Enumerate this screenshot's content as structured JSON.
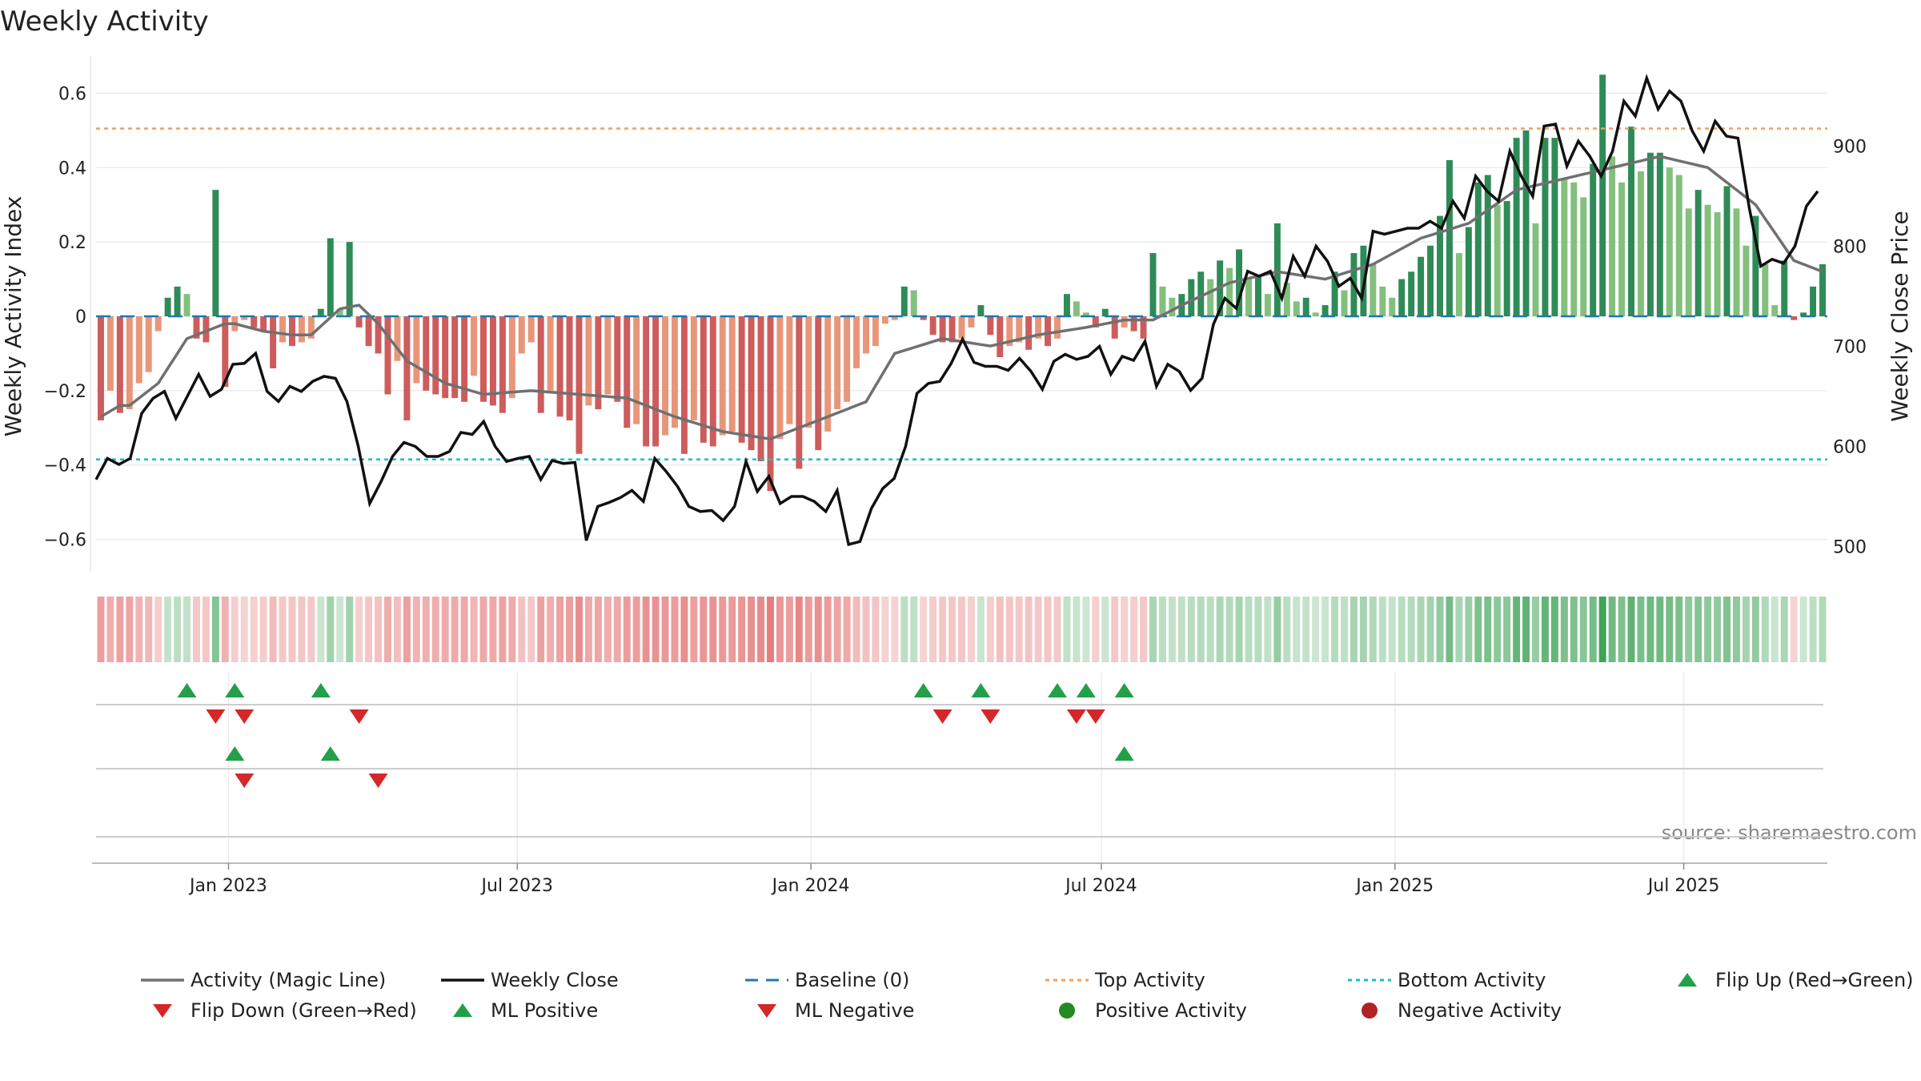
{
  "chart_data": {
    "type": "bar",
    "title": "Weekly Activity",
    "source_label": "source: sharemaestro.com",
    "ylabel_left": "Weekly Activity Index",
    "ylabel_right": "Weekly Close Price",
    "ylim_left": [
      -0.7,
      0.7
    ],
    "ylim_right": [
      470,
      990
    ],
    "yticks_left": [
      0.6,
      0.4,
      0.2,
      0,
      -0.2,
      -0.4,
      -0.6
    ],
    "yticks_left_labels": [
      "0.6",
      "0.4",
      "0.2",
      "0",
      "−0.2",
      "−0.4",
      "−0.6"
    ],
    "yticks_right": [
      900,
      800,
      700,
      600,
      500
    ],
    "yticks_right_labels": [
      "900",
      "800",
      "700",
      "600",
      "500"
    ],
    "top_activity": 0.505,
    "bottom_activity": -0.385,
    "baseline": 0,
    "x_start": "2022-10-10",
    "x_end": "2025-09-29",
    "x_ticks": [
      {
        "date": "2023-01-01",
        "label": "Jan 2023"
      },
      {
        "date": "2023-07-01",
        "label": "Jul 2023"
      },
      {
        "date": "2024-01-01",
        "label": "Jan 2024"
      },
      {
        "date": "2024-07-01",
        "label": "Jul 2024"
      },
      {
        "date": "2025-01-01",
        "label": "Jan 2025"
      },
      {
        "date": "2025-07-01",
        "label": "Jul 2025"
      }
    ],
    "series": [
      {
        "name": "Activity (Magic Line)",
        "color": "#707070"
      },
      {
        "name": "Weekly Close",
        "color": "#111111"
      },
      {
        "name": "Baseline (0)",
        "color": "#1f77b4"
      },
      {
        "name": "Top Activity",
        "color": "#f0a060"
      },
      {
        "name": "Bottom Activity",
        "color": "#17becf"
      }
    ],
    "activity_breakpoints": [
      [
        0,
        -0.28
      ],
      [
        1,
        -0.2
      ],
      [
        2,
        -0.26
      ],
      [
        3,
        -0.25
      ],
      [
        4,
        -0.18
      ],
      [
        5,
        -0.15
      ],
      [
        6,
        -0.04
      ],
      [
        7,
        0.05
      ],
      [
        8,
        0.08
      ],
      [
        9,
        0.06
      ],
      [
        10,
        -0.06
      ],
      [
        11,
        -0.07
      ],
      [
        12,
        0.34
      ],
      [
        13,
        -0.19
      ],
      [
        14,
        -0.04
      ],
      [
        15,
        -0.01
      ],
      [
        16,
        -0.03
      ],
      [
        17,
        -0.04
      ],
      [
        18,
        -0.14
      ],
      [
        19,
        -0.07
      ],
      [
        20,
        -0.08
      ],
      [
        21,
        -0.07
      ],
      [
        22,
        -0.06
      ],
      [
        23,
        0.02
      ],
      [
        24,
        0.21
      ],
      [
        25,
        0.02
      ],
      [
        26,
        0.2
      ],
      [
        27,
        -0.03
      ],
      [
        28,
        -0.08
      ],
      [
        29,
        -0.1
      ],
      [
        30,
        -0.21
      ],
      [
        31,
        -0.12
      ],
      [
        32,
        -0.28
      ],
      [
        33,
        -0.18
      ],
      [
        34,
        -0.2
      ],
      [
        35,
        -0.21
      ],
      [
        36,
        -0.22
      ],
      [
        37,
        -0.22
      ],
      [
        38,
        -0.23
      ],
      [
        39,
        -0.16
      ],
      [
        40,
        -0.23
      ],
      [
        41,
        -0.24
      ],
      [
        42,
        -0.26
      ],
      [
        43,
        -0.22
      ],
      [
        44,
        -0.1
      ],
      [
        45,
        -0.07
      ],
      [
        46,
        -0.26
      ],
      [
        47,
        -0.2
      ],
      [
        48,
        -0.27
      ],
      [
        49,
        -0.28
      ],
      [
        50,
        -0.37
      ],
      [
        51,
        -0.24
      ],
      [
        52,
        -0.25
      ],
      [
        53,
        -0.21
      ],
      [
        54,
        -0.23
      ],
      [
        55,
        -0.3
      ],
      [
        56,
        -0.29
      ],
      [
        57,
        -0.35
      ],
      [
        58,
        -0.35
      ],
      [
        59,
        -0.32
      ],
      [
        60,
        -0.3
      ],
      [
        61,
        -0.37
      ],
      [
        62,
        -0.28
      ],
      [
        63,
        -0.34
      ],
      [
        64,
        -0.35
      ],
      [
        65,
        -0.32
      ],
      [
        66,
        -0.31
      ],
      [
        67,
        -0.34
      ],
      [
        68,
        -0.36
      ],
      [
        69,
        -0.39
      ],
      [
        70,
        -0.47
      ],
      [
        71,
        -0.33
      ],
      [
        72,
        -0.29
      ],
      [
        73,
        -0.41
      ],
      [
        74,
        -0.3
      ],
      [
        75,
        -0.36
      ],
      [
        76,
        -0.31
      ],
      [
        77,
        -0.25
      ],
      [
        78,
        -0.23
      ],
      [
        79,
        -0.14
      ],
      [
        80,
        -0.1
      ],
      [
        81,
        -0.08
      ],
      [
        82,
        -0.02
      ],
      [
        83,
        -0.01
      ],
      [
        84,
        0.08
      ],
      [
        85,
        0.07
      ],
      [
        86,
        -0.01
      ],
      [
        87,
        -0.05
      ],
      [
        88,
        -0.07
      ],
      [
        89,
        -0.07
      ],
      [
        90,
        -0.06
      ],
      [
        91,
        -0.03
      ],
      [
        92,
        0.03
      ],
      [
        93,
        -0.05
      ],
      [
        94,
        -0.11
      ],
      [
        95,
        -0.08
      ],
      [
        96,
        -0.07
      ],
      [
        97,
        -0.09
      ],
      [
        98,
        -0.06
      ],
      [
        99,
        -0.08
      ],
      [
        100,
        -0.06
      ],
      [
        101,
        0.06
      ],
      [
        102,
        0.04
      ],
      [
        103,
        0.01
      ],
      [
        104,
        -0.03
      ],
      [
        105,
        0.02
      ],
      [
        106,
        -0.06
      ],
      [
        107,
        -0.03
      ],
      [
        108,
        -0.04
      ],
      [
        109,
        -0.06
      ],
      [
        110,
        0.17
      ],
      [
        111,
        0.08
      ],
      [
        112,
        0.05
      ],
      [
        113,
        0.06
      ],
      [
        114,
        0.1
      ],
      [
        115,
        0.12
      ],
      [
        116,
        0.1
      ],
      [
        117,
        0.15
      ],
      [
        118,
        0.13
      ],
      [
        119,
        0.18
      ],
      [
        120,
        0.1
      ],
      [
        121,
        0.11
      ],
      [
        122,
        0.06
      ],
      [
        123,
        0.25
      ],
      [
        124,
        0.09
      ],
      [
        125,
        0.04
      ],
      [
        126,
        0.05
      ],
      [
        127,
        0.01
      ],
      [
        128,
        0.03
      ],
      [
        129,
        0.12
      ],
      [
        130,
        0.07
      ],
      [
        131,
        0.17
      ],
      [
        132,
        0.19
      ],
      [
        133,
        0.14
      ],
      [
        134,
        0.08
      ],
      [
        135,
        0.05
      ],
      [
        136,
        0.1
      ],
      [
        137,
        0.12
      ],
      [
        138,
        0.16
      ],
      [
        139,
        0.19
      ],
      [
        140,
        0.27
      ],
      [
        141,
        0.42
      ],
      [
        142,
        0.17
      ],
      [
        143,
        0.24
      ],
      [
        144,
        0.36
      ],
      [
        145,
        0.38
      ],
      [
        146,
        0.3
      ],
      [
        147,
        0.31
      ],
      [
        148,
        0.48
      ],
      [
        149,
        0.5
      ],
      [
        150,
        0.25
      ],
      [
        151,
        0.48
      ],
      [
        152,
        0.48
      ],
      [
        153,
        0.37
      ],
      [
        154,
        0.36
      ],
      [
        155,
        0.32
      ],
      [
        156,
        0.41
      ],
      [
        157,
        0.65
      ],
      [
        158,
        0.43
      ],
      [
        159,
        0.36
      ],
      [
        160,
        0.51
      ],
      [
        161,
        0.39
      ],
      [
        162,
        0.44
      ],
      [
        163,
        0.44
      ],
      [
        164,
        0.4
      ],
      [
        165,
        0.38
      ],
      [
        166,
        0.29
      ],
      [
        167,
        0.34
      ],
      [
        168,
        0.3
      ],
      [
        169,
        0.28
      ],
      [
        170,
        0.35
      ],
      [
        171,
        0.29
      ],
      [
        172,
        0.19
      ],
      [
        173,
        0.27
      ],
      [
        174,
        0.14
      ],
      [
        175,
        0.03
      ],
      [
        176,
        0.15
      ],
      [
        177,
        -0.01
      ],
      [
        178,
        0.01
      ],
      [
        179,
        0.08
      ],
      [
        180,
        0.14
      ]
    ],
    "magic_line_breakpoints": [
      [
        0,
        -0.27
      ],
      [
        2,
        -0.24
      ],
      [
        3,
        -0.24
      ],
      [
        6,
        -0.18
      ],
      [
        9,
        -0.06
      ],
      [
        11,
        -0.04
      ],
      [
        13,
        -0.02
      ],
      [
        14,
        -0.02
      ],
      [
        17,
        -0.04
      ],
      [
        20,
        -0.05
      ],
      [
        22,
        -0.05
      ],
      [
        25,
        0.02
      ],
      [
        27,
        0.03
      ],
      [
        29,
        -0.02
      ],
      [
        32,
        -0.12
      ],
      [
        36,
        -0.18
      ],
      [
        40,
        -0.21
      ],
      [
        45,
        -0.2
      ],
      [
        50,
        -0.21
      ],
      [
        55,
        -0.22
      ],
      [
        60,
        -0.27
      ],
      [
        65,
        -0.31
      ],
      [
        70,
        -0.33
      ],
      [
        75,
        -0.28
      ],
      [
        80,
        -0.23
      ],
      [
        83,
        -0.1
      ],
      [
        88,
        -0.06
      ],
      [
        93,
        -0.08
      ],
      [
        98,
        -0.05
      ],
      [
        103,
        -0.03
      ],
      [
        107,
        -0.01
      ],
      [
        110,
        -0.01
      ],
      [
        113,
        0.03
      ],
      [
        118,
        0.09
      ],
      [
        123,
        0.12
      ],
      [
        128,
        0.1
      ],
      [
        133,
        0.14
      ],
      [
        138,
        0.21
      ],
      [
        143,
        0.25
      ],
      [
        148,
        0.34
      ],
      [
        153,
        0.37
      ],
      [
        158,
        0.4
      ],
      [
        163,
        0.43
      ],
      [
        168,
        0.4
      ],
      [
        173,
        0.3
      ],
      [
        177,
        0.15
      ],
      [
        180,
        0.12
      ]
    ],
    "close_breakpoints": [
      [
        0,
        567
      ],
      [
        1,
        588
      ],
      [
        2,
        582
      ],
      [
        3,
        588
      ],
      [
        4,
        633
      ],
      [
        5,
        648
      ],
      [
        6,
        655
      ],
      [
        7,
        628
      ],
      [
        8,
        650
      ],
      [
        9,
        672
      ],
      [
        10,
        650
      ],
      [
        11,
        657
      ],
      [
        12,
        682
      ],
      [
        13,
        683
      ],
      [
        14,
        693
      ],
      [
        15,
        655
      ],
      [
        16,
        645
      ],
      [
        17,
        660
      ],
      [
        18,
        655
      ],
      [
        19,
        665
      ],
      [
        20,
        670
      ],
      [
        21,
        668
      ],
      [
        22,
        645
      ],
      [
        23,
        600
      ],
      [
        24,
        543
      ],
      [
        25,
        565
      ],
      [
        26,
        590
      ],
      [
        27,
        604
      ],
      [
        28,
        600
      ],
      [
        29,
        590
      ],
      [
        30,
        590
      ],
      [
        31,
        595
      ],
      [
        32,
        614
      ],
      [
        33,
        612
      ],
      [
        34,
        625
      ],
      [
        35,
        600
      ],
      [
        36,
        585
      ],
      [
        37,
        588
      ],
      [
        38,
        590
      ],
      [
        39,
        567
      ],
      [
        40,
        586
      ],
      [
        41,
        583
      ],
      [
        42,
        584
      ],
      [
        43,
        506
      ],
      [
        44,
        540
      ],
      [
        45,
        544
      ],
      [
        46,
        549
      ],
      [
        47,
        556
      ],
      [
        48,
        545
      ],
      [
        49,
        588
      ],
      [
        50,
        575
      ],
      [
        51,
        560
      ],
      [
        52,
        540
      ],
      [
        53,
        535
      ],
      [
        54,
        536
      ],
      [
        55,
        526
      ],
      [
        56,
        540
      ],
      [
        57,
        585
      ],
      [
        58,
        555
      ],
      [
        59,
        570
      ],
      [
        60,
        543
      ],
      [
        61,
        550
      ],
      [
        62,
        550
      ],
      [
        63,
        545
      ],
      [
        64,
        535
      ],
      [
        65,
        556
      ],
      [
        66,
        502
      ],
      [
        67,
        505
      ],
      [
        68,
        538
      ],
      [
        69,
        558
      ],
      [
        70,
        568
      ],
      [
        71,
        600
      ],
      [
        72,
        653
      ],
      [
        73,
        663
      ],
      [
        74,
        665
      ],
      [
        75,
        683
      ],
      [
        76,
        707
      ],
      [
        77,
        684
      ],
      [
        78,
        680
      ],
      [
        79,
        680
      ],
      [
        80,
        676
      ],
      [
        81,
        688
      ],
      [
        82,
        675
      ],
      [
        83,
        657
      ],
      [
        84,
        685
      ],
      [
        85,
        692
      ],
      [
        86,
        687
      ],
      [
        87,
        690
      ],
      [
        88,
        700
      ],
      [
        89,
        672
      ],
      [
        90,
        690
      ],
      [
        91,
        686
      ],
      [
        92,
        705
      ],
      [
        93,
        660
      ],
      [
        94,
        682
      ],
      [
        95,
        675
      ],
      [
        96,
        656
      ],
      [
        97,
        668
      ],
      [
        98,
        722
      ],
      [
        99,
        748
      ],
      [
        100,
        738
      ],
      [
        101,
        775
      ],
      [
        102,
        770
      ],
      [
        103,
        775
      ],
      [
        104,
        748
      ],
      [
        105,
        790
      ],
      [
        106,
        770
      ],
      [
        107,
        800
      ],
      [
        108,
        785
      ],
      [
        109,
        760
      ],
      [
        110,
        768
      ],
      [
        111,
        748
      ],
      [
        112,
        815
      ],
      [
        113,
        812
      ],
      [
        114,
        815
      ],
      [
        115,
        818
      ],
      [
        116,
        818
      ],
      [
        117,
        825
      ],
      [
        118,
        818
      ],
      [
        119,
        845
      ],
      [
        120,
        828
      ],
      [
        121,
        870
      ],
      [
        122,
        855
      ],
      [
        123,
        845
      ],
      [
        124,
        895
      ],
      [
        125,
        870
      ],
      [
        126,
        850
      ],
      [
        127,
        920
      ],
      [
        128,
        922
      ],
      [
        129,
        880
      ],
      [
        130,
        905
      ],
      [
        131,
        890
      ],
      [
        132,
        870
      ],
      [
        133,
        895
      ],
      [
        134,
        945
      ],
      [
        135,
        930
      ],
      [
        136,
        968
      ],
      [
        137,
        937
      ],
      [
        138,
        955
      ],
      [
        139,
        945
      ],
      [
        140,
        915
      ],
      [
        141,
        895
      ],
      [
        142,
        925
      ],
      [
        143,
        910
      ],
      [
        144,
        908
      ],
      [
        145,
        838
      ],
      [
        146,
        780
      ],
      [
        147,
        787
      ],
      [
        148,
        783
      ],
      [
        149,
        800
      ],
      [
        150,
        840
      ],
      [
        151,
        855
      ]
    ],
    "flip_up_1": [
      9,
      14,
      23,
      86,
      92,
      100,
      103,
      107
    ],
    "flip_down_1": [
      12,
      15,
      27,
      88,
      93,
      102,
      104
    ],
    "flip_up_2": [
      14,
      24,
      107
    ],
    "flip_down_2": [
      15,
      29
    ],
    "legend": [
      [
        "Activity (Magic Line)",
        "Weekly Close",
        "Baseline (0)",
        "Top Activity",
        "Bottom Activity",
        "Flip Up (Red→Green)"
      ],
      [
        "Flip Down (Green→Red)",
        "ML Positive",
        "ML Negative",
        "Positive Activity",
        "Negative Activity"
      ]
    ]
  }
}
